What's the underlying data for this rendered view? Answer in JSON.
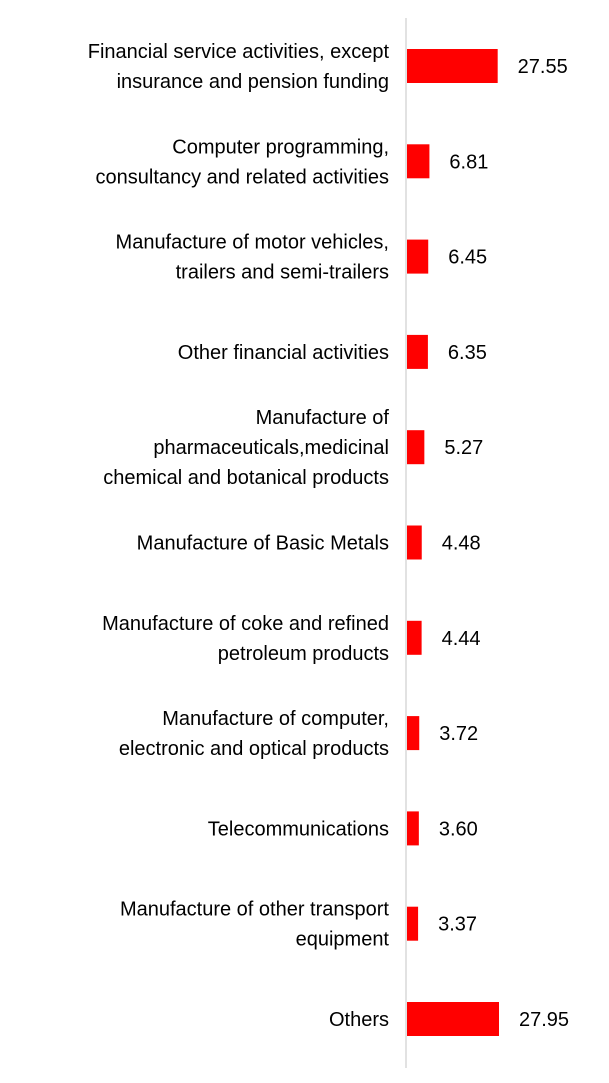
{
  "chart_data": {
    "type": "bar",
    "orientation": "horizontal",
    "categories": [
      [
        "Financial service activities, except",
        "insurance and pension funding"
      ],
      [
        "Computer programming,",
        "consultancy and related activities"
      ],
      [
        "Manufacture of motor vehicles,",
        "trailers and semi-trailers"
      ],
      [
        "Other financial activities"
      ],
      [
        "Manufacture of",
        "pharmaceuticals,medicinal",
        "chemical and botanical products"
      ],
      [
        "Manufacture of Basic Metals"
      ],
      [
        "Manufacture of coke and refined",
        "petroleum products"
      ],
      [
        "Manufacture of computer,",
        "electronic and optical products"
      ],
      [
        "Telecommunications"
      ],
      [
        "Manufacture of other transport",
        "equipment"
      ],
      [
        "Others"
      ]
    ],
    "values": [
      27.55,
      6.81,
      6.45,
      6.35,
      5.27,
      4.48,
      4.44,
      3.72,
      3.6,
      3.37,
      27.95
    ],
    "value_labels": [
      "27.55",
      "6.81",
      "6.45",
      "6.35",
      "5.27",
      "4.48",
      "4.44",
      "3.72",
      "3.60",
      "3.37",
      "27.95"
    ],
    "bar_color": "#ff0000",
    "axis_color": "#d9d9d9",
    "legend": "none",
    "grid": false
  }
}
